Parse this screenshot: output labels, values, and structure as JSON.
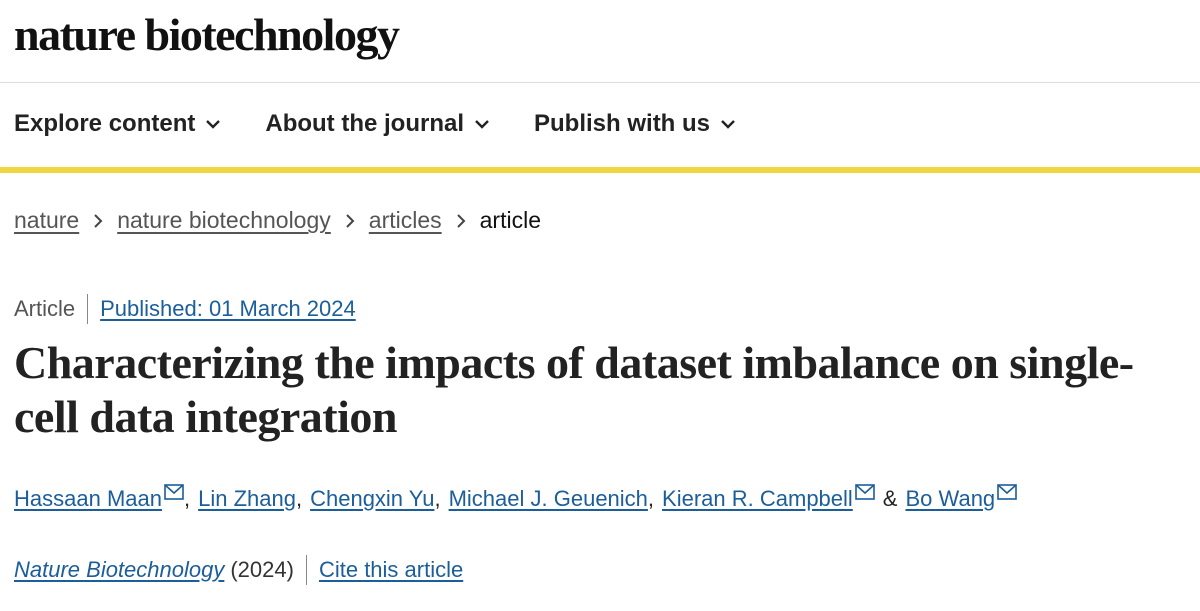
{
  "header": {
    "logo": "nature biotechnology"
  },
  "nav": {
    "items": [
      "Explore content",
      "About the journal",
      "Publish with us"
    ]
  },
  "breadcrumbs": [
    "nature",
    "nature biotechnology",
    "articles",
    "article"
  ],
  "article": {
    "type": "Article",
    "published": "Published: 01 March 2024",
    "title": "Characterizing the impacts of dataset imbalance on single-cell data integration",
    "authors": [
      {
        "name": "Hassaan Maan",
        "email": true
      },
      {
        "name": "Lin Zhang",
        "email": false
      },
      {
        "name": "Chengxin Yu",
        "email": false
      },
      {
        "name": "Michael J. Geuenich",
        "email": false
      },
      {
        "name": "Kieran R. Campbell",
        "email": true
      },
      {
        "name": "Bo Wang",
        "email": true
      }
    ],
    "separators": [
      ",",
      ",",
      ",",
      ",",
      "&"
    ],
    "journal": "Nature Biotechnology",
    "year": "(2024)",
    "cite": "Cite this article"
  }
}
